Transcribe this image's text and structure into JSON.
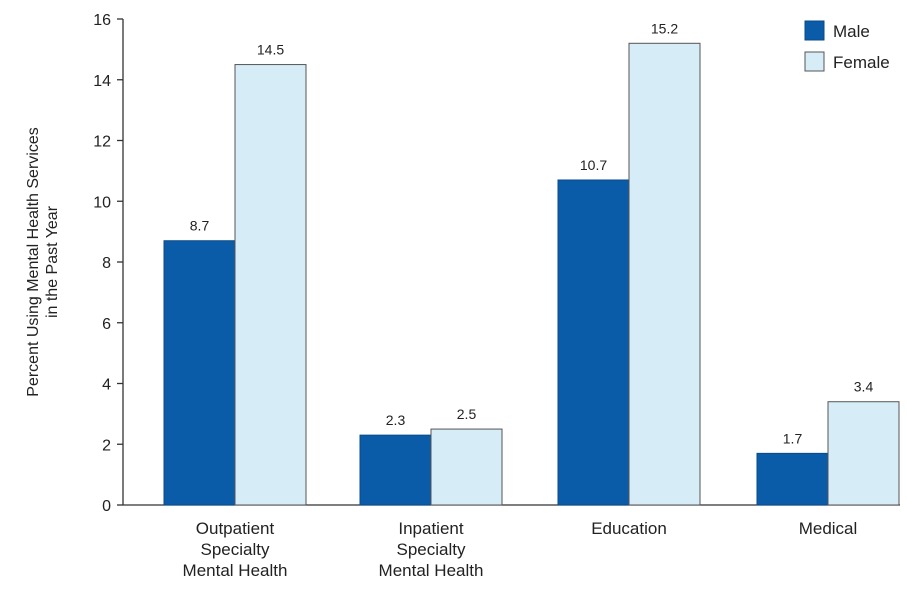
{
  "chart_data": {
    "type": "bar",
    "title": "",
    "ylabel": [
      "Percent Using Mental Health Services",
      "in the Past Year"
    ],
    "xlabel": "",
    "ylim": [
      0,
      16
    ],
    "yticks": [
      0,
      2,
      4,
      6,
      8,
      10,
      12,
      14,
      16
    ],
    "categories": [
      [
        "Outpatient",
        "Specialty",
        "Mental Health"
      ],
      [
        "Inpatient",
        "Specialty",
        "Mental Health"
      ],
      [
        "Education"
      ],
      [
        "Medical"
      ]
    ],
    "series": [
      {
        "name": "Male",
        "color": "#0a5ca8",
        "values": [
          8.7,
          2.3,
          10.7,
          1.7
        ],
        "labels": [
          "8.7",
          "2.3",
          "10.7",
          "1.7"
        ]
      },
      {
        "name": "Female",
        "color": "#d6ecf6",
        "values": [
          14.5,
          2.5,
          15.2,
          3.4
        ],
        "labels": [
          "14.5",
          "2.5",
          "15.2",
          "3.4"
        ]
      }
    ],
    "legend_position": "top-right",
    "grid": false
  }
}
